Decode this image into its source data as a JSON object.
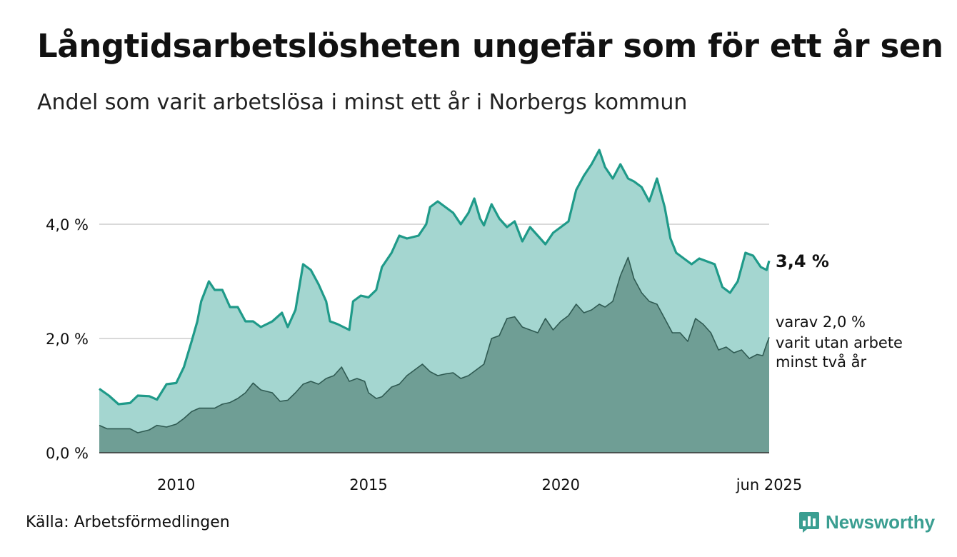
{
  "header": {
    "title": "Långtidsarbetslösheten ungefär som för ett år sen",
    "subtitle": "Andel som varit arbetslösa i minst ett år i Norbergs kommun"
  },
  "footer": {
    "source": "Källa: Arbetsförmedlingen",
    "brand": "Newsworthy"
  },
  "colors": {
    "line_total": "#1f9a89",
    "area_total": "#a4d6d0",
    "line_long": "#2f5a52",
    "area_long": "#6f9e95",
    "grid": "#d9d9d9",
    "brand": "#3a9e91"
  },
  "chart_data": {
    "type": "area",
    "x_start": "2008-01",
    "x_end": "2025-06",
    "xlim": [
      2008.0,
      2025.417
    ],
    "ylim": [
      0,
      5.4
    ],
    "y_ticks": [
      0,
      2,
      4
    ],
    "y_tick_labels": [
      "0,0 %",
      "2,0 %",
      "4,0 %"
    ],
    "x_ticks": [
      2010,
      2015,
      2020,
      2025.417
    ],
    "x_tick_labels": [
      "2010",
      "2015",
      "2020",
      "jun 2025"
    ],
    "grid": "horizontal",
    "annotations": {
      "total_label": "3,4 %",
      "long_label_lines": [
        "varav 2,0 %",
        "varit utan arbete",
        "minst två år"
      ]
    },
    "series": [
      {
        "key": "total",
        "points": [
          [
            2008.0,
            1.12
          ],
          [
            2008.25,
            1.0
          ],
          [
            2008.5,
            0.85
          ],
          [
            2008.8,
            0.87
          ],
          [
            2009.0,
            1.0
          ],
          [
            2009.3,
            0.99
          ],
          [
            2009.5,
            0.93
          ],
          [
            2009.75,
            1.2
          ],
          [
            2010.0,
            1.22
          ],
          [
            2010.2,
            1.5
          ],
          [
            2010.4,
            1.95
          ],
          [
            2010.55,
            2.3
          ],
          [
            2010.65,
            2.65
          ],
          [
            2010.85,
            3.0
          ],
          [
            2011.0,
            2.85
          ],
          [
            2011.2,
            2.85
          ],
          [
            2011.4,
            2.55
          ],
          [
            2011.6,
            2.55
          ],
          [
            2011.8,
            2.3
          ],
          [
            2012.0,
            2.3
          ],
          [
            2012.2,
            2.2
          ],
          [
            2012.5,
            2.3
          ],
          [
            2012.75,
            2.45
          ],
          [
            2012.9,
            2.2
          ],
          [
            2013.1,
            2.5
          ],
          [
            2013.3,
            3.3
          ],
          [
            2013.5,
            3.2
          ],
          [
            2013.7,
            2.95
          ],
          [
            2013.9,
            2.65
          ],
          [
            2014.0,
            2.3
          ],
          [
            2014.2,
            2.25
          ],
          [
            2014.5,
            2.15
          ],
          [
            2014.6,
            2.65
          ],
          [
            2014.8,
            2.75
          ],
          [
            2015.0,
            2.72
          ],
          [
            2015.2,
            2.85
          ],
          [
            2015.35,
            3.25
          ],
          [
            2015.6,
            3.5
          ],
          [
            2015.8,
            3.8
          ],
          [
            2016.0,
            3.75
          ],
          [
            2016.3,
            3.8
          ],
          [
            2016.5,
            4.0
          ],
          [
            2016.6,
            4.3
          ],
          [
            2016.8,
            4.4
          ],
          [
            2017.0,
            4.3
          ],
          [
            2017.2,
            4.2
          ],
          [
            2017.4,
            4.0
          ],
          [
            2017.6,
            4.2
          ],
          [
            2017.75,
            4.45
          ],
          [
            2017.9,
            4.1
          ],
          [
            2018.0,
            3.98
          ],
          [
            2018.2,
            4.35
          ],
          [
            2018.4,
            4.1
          ],
          [
            2018.6,
            3.95
          ],
          [
            2018.8,
            4.05
          ],
          [
            2019.0,
            3.7
          ],
          [
            2019.2,
            3.95
          ],
          [
            2019.4,
            3.8
          ],
          [
            2019.6,
            3.65
          ],
          [
            2019.8,
            3.85
          ],
          [
            2020.0,
            3.95
          ],
          [
            2020.2,
            4.05
          ],
          [
            2020.4,
            4.6
          ],
          [
            2020.6,
            4.85
          ],
          [
            2020.8,
            5.05
          ],
          [
            2021.0,
            5.3
          ],
          [
            2021.15,
            5.0
          ],
          [
            2021.35,
            4.8
          ],
          [
            2021.55,
            5.05
          ],
          [
            2021.75,
            4.8
          ],
          [
            2021.9,
            4.75
          ],
          [
            2022.1,
            4.65
          ],
          [
            2022.3,
            4.4
          ],
          [
            2022.5,
            4.8
          ],
          [
            2022.7,
            4.3
          ],
          [
            2022.85,
            3.75
          ],
          [
            2023.0,
            3.5
          ],
          [
            2023.2,
            3.4
          ],
          [
            2023.4,
            3.3
          ],
          [
            2023.6,
            3.4
          ],
          [
            2023.8,
            3.35
          ],
          [
            2024.0,
            3.3
          ],
          [
            2024.2,
            2.9
          ],
          [
            2024.4,
            2.8
          ],
          [
            2024.6,
            3.0
          ],
          [
            2024.8,
            3.5
          ],
          [
            2025.0,
            3.45
          ],
          [
            2025.2,
            3.25
          ],
          [
            2025.35,
            3.2
          ],
          [
            2025.417,
            3.36
          ]
        ]
      },
      {
        "key": "long",
        "points": [
          [
            2008.0,
            0.48
          ],
          [
            2008.2,
            0.42
          ],
          [
            2008.4,
            0.42
          ],
          [
            2008.8,
            0.42
          ],
          [
            2009.0,
            0.35
          ],
          [
            2009.3,
            0.4
          ],
          [
            2009.5,
            0.48
          ],
          [
            2009.75,
            0.45
          ],
          [
            2010.0,
            0.5
          ],
          [
            2010.2,
            0.6
          ],
          [
            2010.4,
            0.72
          ],
          [
            2010.6,
            0.78
          ],
          [
            2010.8,
            0.78
          ],
          [
            2011.0,
            0.78
          ],
          [
            2011.2,
            0.85
          ],
          [
            2011.4,
            0.88
          ],
          [
            2011.6,
            0.95
          ],
          [
            2011.8,
            1.05
          ],
          [
            2012.0,
            1.22
          ],
          [
            2012.2,
            1.1
          ],
          [
            2012.5,
            1.05
          ],
          [
            2012.7,
            0.9
          ],
          [
            2012.9,
            0.92
          ],
          [
            2013.1,
            1.05
          ],
          [
            2013.3,
            1.2
          ],
          [
            2013.5,
            1.25
          ],
          [
            2013.7,
            1.2
          ],
          [
            2013.9,
            1.3
          ],
          [
            2014.1,
            1.35
          ],
          [
            2014.3,
            1.5
          ],
          [
            2014.5,
            1.25
          ],
          [
            2014.7,
            1.3
          ],
          [
            2014.9,
            1.25
          ],
          [
            2015.0,
            1.05
          ],
          [
            2015.2,
            0.95
          ],
          [
            2015.35,
            0.98
          ],
          [
            2015.6,
            1.15
          ],
          [
            2015.8,
            1.2
          ],
          [
            2016.0,
            1.35
          ],
          [
            2016.2,
            1.45
          ],
          [
            2016.4,
            1.55
          ],
          [
            2016.6,
            1.42
          ],
          [
            2016.8,
            1.35
          ],
          [
            2017.0,
            1.38
          ],
          [
            2017.2,
            1.4
          ],
          [
            2017.4,
            1.3
          ],
          [
            2017.6,
            1.35
          ],
          [
            2017.8,
            1.45
          ],
          [
            2018.0,
            1.55
          ],
          [
            2018.2,
            2.0
          ],
          [
            2018.4,
            2.05
          ],
          [
            2018.6,
            2.35
          ],
          [
            2018.8,
            2.38
          ],
          [
            2019.0,
            2.2
          ],
          [
            2019.2,
            2.15
          ],
          [
            2019.4,
            2.1
          ],
          [
            2019.6,
            2.35
          ],
          [
            2019.8,
            2.15
          ],
          [
            2020.0,
            2.3
          ],
          [
            2020.2,
            2.4
          ],
          [
            2020.4,
            2.6
          ],
          [
            2020.6,
            2.45
          ],
          [
            2020.8,
            2.5
          ],
          [
            2021.0,
            2.6
          ],
          [
            2021.15,
            2.55
          ],
          [
            2021.35,
            2.65
          ],
          [
            2021.55,
            3.1
          ],
          [
            2021.75,
            3.42
          ],
          [
            2021.9,
            3.05
          ],
          [
            2022.1,
            2.8
          ],
          [
            2022.3,
            2.65
          ],
          [
            2022.5,
            2.6
          ],
          [
            2022.7,
            2.35
          ],
          [
            2022.9,
            2.1
          ],
          [
            2023.1,
            2.1
          ],
          [
            2023.3,
            1.95
          ],
          [
            2023.5,
            2.35
          ],
          [
            2023.7,
            2.25
          ],
          [
            2023.9,
            2.1
          ],
          [
            2024.1,
            1.8
          ],
          [
            2024.3,
            1.85
          ],
          [
            2024.5,
            1.75
          ],
          [
            2024.7,
            1.8
          ],
          [
            2024.9,
            1.65
          ],
          [
            2025.1,
            1.72
          ],
          [
            2025.25,
            1.7
          ],
          [
            2025.35,
            1.9
          ],
          [
            2025.417,
            2.02
          ]
        ]
      }
    ]
  }
}
